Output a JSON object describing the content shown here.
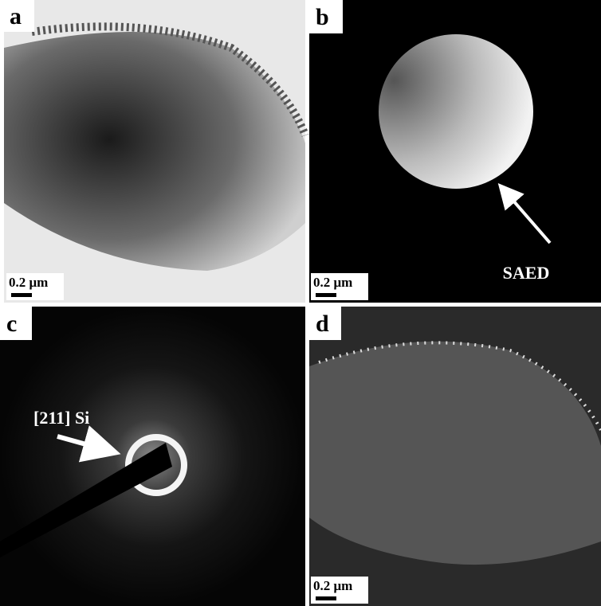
{
  "panels": [
    {
      "label": "a",
      "scale_bar": "0.2 μm"
    },
    {
      "label": "b",
      "scale_bar": "0.2 μm",
      "annotation": "SAED"
    },
    {
      "label": "c",
      "annotation": "[211] Si"
    },
    {
      "label": "d",
      "scale_bar": "0.2 μm"
    }
  ]
}
